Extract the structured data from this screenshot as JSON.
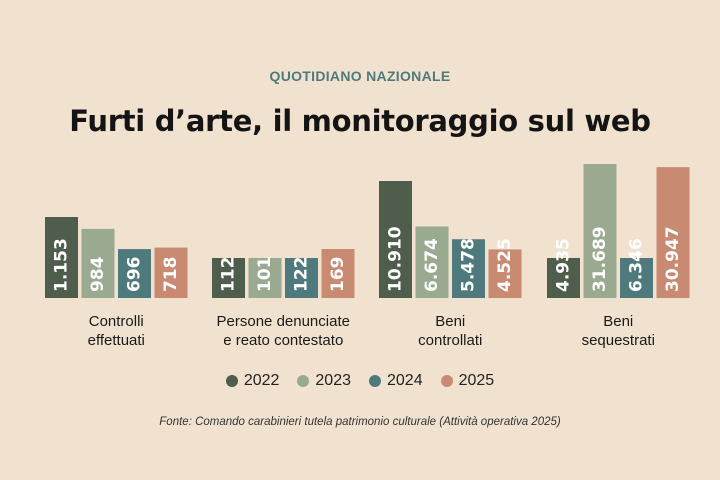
{
  "header": {
    "source": "QUOTIDIANO NAZIONALE",
    "title": "Furti d’arte, il monitoraggio sul web"
  },
  "footnote": "Fonte: Comando carabinieri tutela patrimonio culturale (Attività operativa 2025)",
  "colors": {
    "background": "#f1e2d0",
    "2022": "#4f5e4c",
    "2023": "#9aaa91",
    "2024": "#4f7a7d",
    "2025": "#c98a72"
  },
  "chart_data": {
    "type": "bar",
    "categories": [
      [
        "Controlli",
        "effettuati"
      ],
      [
        "Persone denunciate",
        "e reato contestato"
      ],
      [
        "Beni",
        "controllati"
      ],
      [
        "Beni",
        "sequestrati"
      ]
    ],
    "series": [
      {
        "name": "2022",
        "color": "#4f5e4c",
        "values": [
          1153,
          112,
          10910,
          4935
        ],
        "labels": [
          "1.153",
          "112",
          "10.910",
          "4.935"
        ]
      },
      {
        "name": "2023",
        "color": "#9aaa91",
        "values": [
          984,
          101,
          6674,
          31689
        ],
        "labels": [
          "984",
          "101",
          "6.674",
          "31.689"
        ]
      },
      {
        "name": "2024",
        "color": "#4f7a7d",
        "values": [
          696,
          122,
          5478,
          6346
        ],
        "labels": [
          "696",
          "122",
          "5.478",
          "6.346"
        ]
      },
      {
        "name": "2025",
        "color": "#c98a72",
        "values": [
          718,
          169,
          4525,
          30947
        ],
        "labels": [
          "718",
          "169",
          "4.525",
          "30.947"
        ]
      }
    ],
    "legend": "bottom-center",
    "grid": false
  }
}
